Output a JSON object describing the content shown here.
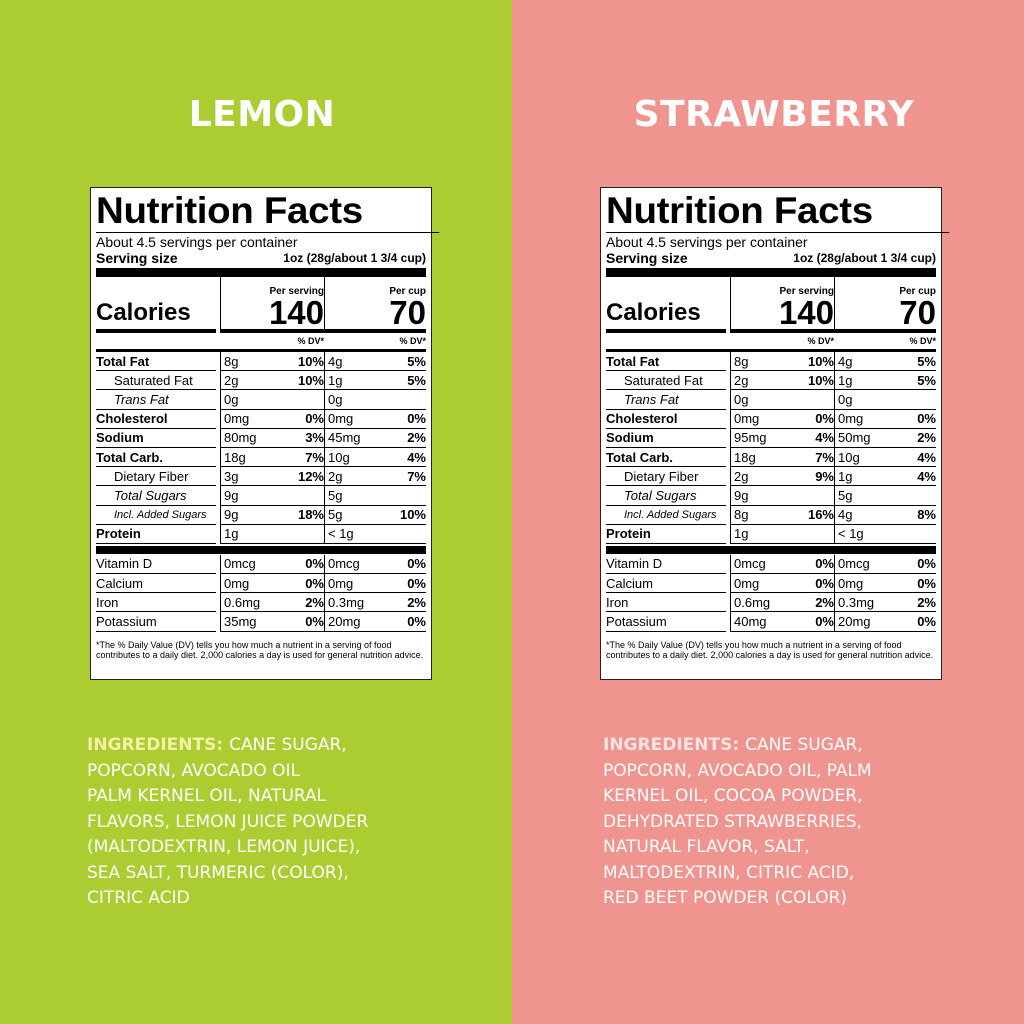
{
  "panels": [
    {
      "title": "LEMON",
      "nutrition": {
        "heading": "Nutrition Facts",
        "servings": "About 4.5 servings per container",
        "serving_size_label": "Serving size",
        "serving_size": "1oz (28g/about 1 3/4 cup)",
        "calories_label": "Calories",
        "per_serving_label": "Per serving",
        "calories_serving": 140,
        "per_cup_label": "Per cup",
        "calories_cup": 70,
        "dv_label": "% DV*",
        "rows": [
          {
            "name": "Total Fat",
            "serving": "8g",
            "serving_dv": "10%",
            "cup": "4g",
            "cup_dv": "5%"
          },
          {
            "name": "Saturated Fat",
            "serving": "2g",
            "serving_dv": "10%",
            "cup": "1g",
            "cup_dv": "5%"
          },
          {
            "name": "Trans Fat",
            "serving": "0g",
            "cup": "0g"
          },
          {
            "name": "Cholesterol",
            "serving": "0mg",
            "serving_dv": "0%",
            "cup": "0mg",
            "cup_dv": "0%"
          },
          {
            "name": "Sodium",
            "serving": "80mg",
            "serving_dv": "3%",
            "cup": "45mg",
            "cup_dv": "2%"
          },
          {
            "name": "Total Carb.",
            "serving": "18g",
            "serving_dv": "7%",
            "cup": "10g",
            "cup_dv": "4%"
          },
          {
            "name": "Dietary Fiber",
            "serving": "3g",
            "serving_dv": "12%",
            "cup": "2g",
            "cup_dv": "7%"
          },
          {
            "name": "Total Sugars",
            "serving": "9g",
            "cup": "5g"
          },
          {
            "name": "Incl. Added Sugars",
            "serving": "9g",
            "serving_dv": "18%",
            "cup": "5g",
            "cup_dv": "10%"
          },
          {
            "name": "Protein",
            "serving": "1g",
            "cup": "< 1g"
          },
          {
            "name": "Vitamin D",
            "serving": "0mcg",
            "serving_dv": "0%",
            "cup": "0mcg",
            "cup_dv": "0%"
          },
          {
            "name": "Calcium",
            "serving": "0mg",
            "serving_dv": "0%",
            "cup": "0mg",
            "cup_dv": "0%"
          },
          {
            "name": "Iron",
            "serving": "0.6mg",
            "serving_dv": "2%",
            "cup": "0.3mg",
            "cup_dv": "2%"
          },
          {
            "name": "Potassium",
            "serving": "35mg",
            "serving_dv": "0%",
            "cup": "20mg",
            "cup_dv": "0%"
          }
        ],
        "footnote": "*The % Daily Value (DV) tells you how much a nutrient in a serving of food contributes to a daily diet. 2,000 calories a day is used for general nutrition advice."
      },
      "ingredients": {
        "label": "INGREDIENTS:",
        "lines": [
          "CANE SUGAR,",
          "POPCORN, AVOCADO OIL",
          "PALM KERNEL OIL, NATURAL",
          "FLAVORS, LEMON JUICE POWDER",
          "(MALTODEXTRIN, LEMON JUICE),",
          "SEA SALT, TURMERIC (COLOR),",
          "CITRIC ACID"
        ]
      }
    },
    {
      "title": "STRAWBERRY",
      "nutrition": {
        "heading": "Nutrition Facts",
        "servings": "About 4.5 servings per container",
        "serving_size_label": "Serving size",
        "serving_size": "1oz (28g/about 1 3/4 cup)",
        "calories_label": "Calories",
        "per_serving_label": "Per serving",
        "calories_serving": 140,
        "per_cup_label": "Per cup",
        "calories_cup": 70,
        "dv_label": "% DV*",
        "rows": [
          {
            "name": "Total Fat",
            "serving": "8g",
            "serving_dv": "10%",
            "cup": "4g",
            "cup_dv": "5%"
          },
          {
            "name": "Saturated Fat",
            "serving": "2g",
            "serving_dv": "10%",
            "cup": "1g",
            "cup_dv": "5%"
          },
          {
            "name": "Trans Fat",
            "serving": "0g",
            "cup": "0g"
          },
          {
            "name": "Cholesterol",
            "serving": "0mg",
            "serving_dv": "0%",
            "cup": "0mg",
            "cup_dv": "0%"
          },
          {
            "name": "Sodium",
            "serving": "95mg",
            "serving_dv": "4%",
            "cup": "50mg",
            "cup_dv": "2%"
          },
          {
            "name": "Total Carb.",
            "serving": "18g",
            "serving_dv": "7%",
            "cup": "10g",
            "cup_dv": "4%"
          },
          {
            "name": "Dietary Fiber",
            "serving": "2g",
            "serving_dv": "9%",
            "cup": "1g",
            "cup_dv": "4%"
          },
          {
            "name": "Total Sugars",
            "serving": "9g",
            "cup": "5g"
          },
          {
            "name": "Incl. Added Sugars",
            "serving": "8g",
            "serving_dv": "16%",
            "cup": "4g",
            "cup_dv": "8%"
          },
          {
            "name": "Protein",
            "serving": "1g",
            "cup": "< 1g"
          },
          {
            "name": "Vitamin D",
            "serving": "0mcg",
            "serving_dv": "0%",
            "cup": "0mcg",
            "cup_dv": "0%"
          },
          {
            "name": "Calcium",
            "serving": "0mg",
            "serving_dv": "0%",
            "cup": "0mg",
            "cup_dv": "0%"
          },
          {
            "name": "Iron",
            "serving": "0.6mg",
            "serving_dv": "2%",
            "cup": "0.3mg",
            "cup_dv": "2%"
          },
          {
            "name": "Potassium",
            "serving": "40mg",
            "serving_dv": "0%",
            "cup": "20mg",
            "cup_dv": "0%"
          }
        ],
        "footnote": "*The % Daily Value (DV) tells you how much a nutrient in a serving of food contributes to a daily diet. 2,000 calories a day is used for general nutrition advice."
      },
      "ingredients": {
        "label": "INGREDIENTS:",
        "lines": [
          "CANE SUGAR,",
          "POPCORN, AVOCADO OIL, PALM",
          "KERNEL OIL, COCOA POWDER,",
          "DEHYDRATED STRAWBERRIES,",
          "NATURAL FLAVOR, SALT,",
          "MALTODEXTRIN, CITRIC ACID,",
          "RED BEET POWDER (COLOR)"
        ]
      }
    }
  ]
}
